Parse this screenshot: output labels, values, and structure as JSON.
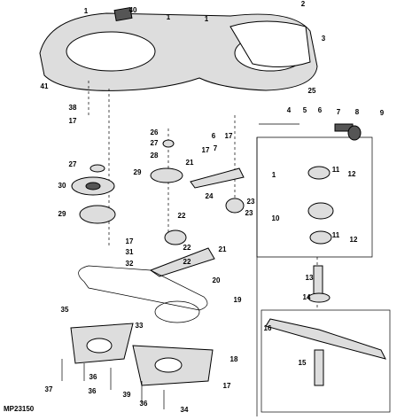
{
  "callouts": [
    "1",
    "40",
    "1",
    "1",
    "2",
    "3",
    "41",
    "25",
    "38",
    "17",
    "4",
    "5",
    "6",
    "7",
    "8",
    "9",
    "26",
    "27",
    "28",
    "6",
    "17",
    "7",
    "21",
    "17",
    "27",
    "29",
    "30",
    "11",
    "12",
    "1",
    "24",
    "23",
    "22",
    "23",
    "29",
    "10",
    "11",
    "12",
    "17",
    "31",
    "32",
    "21",
    "22",
    "22",
    "13",
    "20",
    "14",
    "19",
    "35",
    "33",
    "16",
    "18",
    "15",
    "17",
    "37",
    "36",
    "36",
    "39",
    "36",
    "34"
  ],
  "drawing_code": "MP23150"
}
